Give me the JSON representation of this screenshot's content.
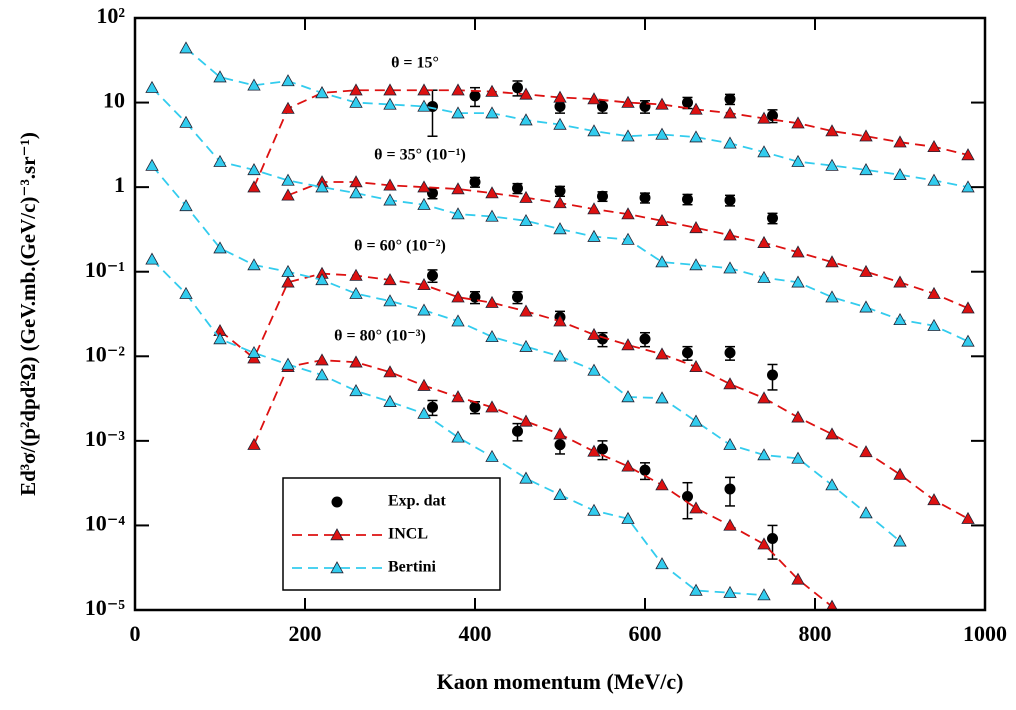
{
  "chart_data": {
    "type": "scatter",
    "log_y": true,
    "xlabel": "Kaon momentum (MeV/c)",
    "ylabel": "Ed³σ/(p²dpd²Ω) (GeV.mb.(GeV/c)⁻³.sr⁻¹)",
    "xlim": [
      0,
      1000
    ],
    "xticks": [
      0,
      200,
      400,
      600,
      800,
      1000
    ],
    "ylim": [
      1e-05,
      100
    ],
    "yticks": [
      {
        "value": 1e-05,
        "label": "10⁻⁵"
      },
      {
        "value": 0.0001,
        "label": "10⁻⁴"
      },
      {
        "value": 0.001,
        "label": "10⁻³"
      },
      {
        "value": 0.01,
        "label": "10⁻²"
      },
      {
        "value": 0.1,
        "label": "10⁻¹"
      },
      1,
      10,
      {
        "value": 100,
        "label": "10²"
      }
    ],
    "annotations": [
      "θ = 15°",
      "θ = 35° (10⁻¹)",
      "θ = 60° (10⁻²)",
      "θ = 80° (10⁻³)"
    ],
    "legend": "lower-center",
    "series": [
      {
        "name": "Exp. dat",
        "color": "#000000",
        "marker": "circle",
        "x": [
          350,
          400,
          450,
          500,
          550,
          600,
          650,
          700,
          750
        ],
        "values": [
          9,
          12,
          15,
          9,
          9,
          9,
          10,
          11,
          7
        ],
        "errors": [
          5,
          3,
          3,
          1.5,
          1.5,
          1.5,
          1.5,
          1.5,
          1.2
        ]
      },
      {
        "name": "INCL",
        "color": "#dd1111",
        "marker": "triangle",
        "x": [
          140,
          180,
          220,
          260,
          300,
          340,
          380,
          420,
          460,
          500,
          540,
          580,
          620,
          660,
          700,
          740,
          780,
          820,
          860,
          900,
          940,
          980
        ],
        "values": [
          1.0,
          8.5,
          13,
          14,
          14,
          14,
          14,
          13.5,
          12.5,
          11.5,
          11,
          10,
          9.5,
          8.3,
          7.5,
          6.5,
          5.7,
          4.6,
          4,
          3.4,
          3,
          2.4
        ]
      },
      {
        "name": "Bertini",
        "color": "#33ccee",
        "marker": "triangle",
        "x": [
          60,
          100,
          140,
          180,
          220,
          260,
          300,
          340,
          380,
          420,
          460,
          500,
          540,
          580,
          620,
          660,
          700,
          740,
          780,
          820,
          860,
          900,
          940,
          980
        ],
        "values": [
          44,
          20,
          16,
          18,
          13,
          10,
          9.5,
          9,
          7.5,
          7.5,
          6.2,
          5.5,
          4.6,
          4.0,
          4.2,
          3.9,
          3.3,
          2.6,
          2.0,
          1.8,
          1.6,
          1.4,
          1.2,
          1.0
        ]
      },
      {
        "name": "Exp. dat",
        "color": "#000000",
        "marker": "circle",
        "x": [
          350,
          400,
          450,
          500,
          550,
          600,
          650,
          700,
          750
        ],
        "values": [
          0.85,
          1.15,
          0.97,
          0.9,
          0.78,
          0.75,
          0.72,
          0.7,
          0.43
        ],
        "errors": [
          0.12,
          0.15,
          0.13,
          0.12,
          0.1,
          0.1,
          0.1,
          0.1,
          0.06
        ]
      },
      {
        "name": "INCL",
        "color": "#dd1111",
        "marker": "triangle",
        "x": [
          180,
          220,
          260,
          300,
          340,
          380,
          420,
          460,
          500,
          540,
          580,
          620,
          660,
          700,
          740,
          780,
          820,
          860,
          900,
          940,
          980
        ],
        "values": [
          0.8,
          1.15,
          1.15,
          1.05,
          1.0,
          0.95,
          0.85,
          0.75,
          0.65,
          0.55,
          0.48,
          0.4,
          0.33,
          0.27,
          0.22,
          0.17,
          0.13,
          0.1,
          0.075,
          0.055,
          0.037
        ]
      },
      {
        "name": "Bertini",
        "color": "#33ccee",
        "marker": "triangle",
        "x": [
          20,
          60,
          100,
          140,
          180,
          220,
          260,
          300,
          340,
          380,
          420,
          460,
          500,
          540,
          580,
          620,
          660,
          700,
          740,
          780,
          820,
          860,
          900,
          940,
          980
        ],
        "values": [
          15,
          5.8,
          2.0,
          1.6,
          1.2,
          1.0,
          0.85,
          0.7,
          0.62,
          0.48,
          0.45,
          0.4,
          0.32,
          0.26,
          0.24,
          0.13,
          0.12,
          0.11,
          0.085,
          0.075,
          0.05,
          0.038,
          0.027,
          0.023,
          0.015
        ]
      },
      {
        "name": "Exp. dat",
        "color": "#000000",
        "marker": "circle",
        "x": [
          350,
          400,
          450,
          500,
          550,
          600,
          650,
          700,
          750
        ],
        "values": [
          0.09,
          0.05,
          0.05,
          0.029,
          0.016,
          0.016,
          0.011,
          0.011,
          0.006
        ],
        "errors": [
          0.015,
          0.008,
          0.008,
          0.005,
          0.003,
          0.003,
          0.002,
          0.002,
          0.002
        ]
      },
      {
        "name": "INCL",
        "color": "#dd1111",
        "marker": "triangle",
        "x": [
          100,
          140,
          180,
          220,
          260,
          300,
          340,
          380,
          420,
          460,
          500,
          540,
          580,
          620,
          660,
          700,
          740,
          780,
          820,
          860,
          900,
          940,
          980
        ],
        "values": [
          0.02,
          0.0095,
          0.075,
          0.095,
          0.09,
          0.08,
          0.07,
          0.05,
          0.043,
          0.034,
          0.026,
          0.018,
          0.0136,
          0.0106,
          0.0075,
          0.0047,
          0.0032,
          0.0019,
          0.0012,
          0.00074,
          0.0004,
          0.0002,
          0.00012
        ]
      },
      {
        "name": "Bertini",
        "color": "#33ccee",
        "marker": "triangle",
        "x": [
          20,
          60,
          100,
          140,
          180,
          220,
          260,
          300,
          340,
          380,
          420,
          460,
          500,
          540,
          580,
          620,
          660,
          700,
          740,
          780,
          820,
          860,
          900
        ],
        "values": [
          1.8,
          0.6,
          0.19,
          0.12,
          0.1,
          0.08,
          0.055,
          0.045,
          0.035,
          0.026,
          0.017,
          0.013,
          0.01,
          0.0068,
          0.0033,
          0.0032,
          0.0017,
          0.0009,
          0.00068,
          0.00062,
          0.0003,
          0.00014,
          6.5e-05
        ]
      },
      {
        "name": "Exp. dat",
        "color": "#000000",
        "marker": "circle",
        "x": [
          350,
          400,
          450,
          500,
          550,
          600,
          650,
          700,
          750
        ],
        "values": [
          0.0025,
          0.0025,
          0.0013,
          0.0009,
          0.0008,
          0.00045,
          0.00022,
          0.00027,
          7e-05
        ],
        "errors": [
          0.0005,
          0.0004,
          0.0003,
          0.0002,
          0.0002,
          0.0001,
          0.0001,
          0.0001,
          3e-05
        ]
      },
      {
        "name": "INCL",
        "color": "#dd1111",
        "marker": "triangle",
        "x": [
          140,
          180,
          220,
          260,
          300,
          340,
          380,
          420,
          460,
          500,
          540,
          580,
          620,
          660,
          700,
          740,
          780,
          820
        ],
        "values": [
          0.0009,
          0.0075,
          0.009,
          0.0085,
          0.0065,
          0.0045,
          0.0033,
          0.0025,
          0.0017,
          0.0012,
          0.00075,
          0.0005,
          0.0003,
          0.00016,
          0.0001,
          6e-05,
          2.3e-05,
          1.1e-05
        ]
      },
      {
        "name": "Bertini",
        "color": "#33ccee",
        "marker": "triangle",
        "x": [
          20,
          60,
          100,
          140,
          180,
          220,
          260,
          300,
          340,
          380,
          420,
          460,
          500,
          540,
          580,
          620,
          660,
          700,
          740
        ],
        "values": [
          0.14,
          0.055,
          0.016,
          0.011,
          0.008,
          0.006,
          0.0039,
          0.0029,
          0.0021,
          0.0011,
          0.00065,
          0.00036,
          0.00023,
          0.00015,
          0.00012,
          3.5e-05,
          1.7e-05,
          1.6e-05,
          1.5e-05
        ]
      }
    ]
  }
}
